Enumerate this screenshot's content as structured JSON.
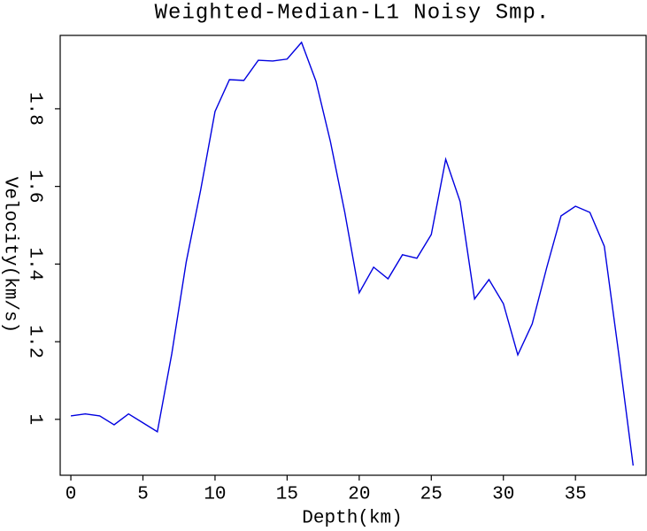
{
  "chart_data": {
    "type": "line",
    "title": "Weighted-Median-L1 Noisy Smp.",
    "x_label": "Depth(km)",
    "y_label": "Velocity(km/s)",
    "x": [
      0,
      1,
      2,
      3,
      4,
      5,
      6,
      7,
      8,
      9,
      10,
      11,
      12,
      13,
      14,
      15,
      16,
      17,
      18,
      19,
      20,
      21,
      22,
      23,
      24,
      25,
      26,
      27,
      28,
      29,
      30,
      31,
      32,
      33,
      34,
      35,
      36,
      37,
      38,
      39
    ],
    "series": [
      {
        "color": "#0000e0",
        "values": [
          1.009,
          1.014,
          1.009,
          0.986,
          1.014,
          0.991,
          0.968,
          1.169,
          1.405,
          1.59,
          1.793,
          1.875,
          1.873,
          1.925,
          1.923,
          1.928,
          1.971,
          1.871,
          1.716,
          1.533,
          1.326,
          1.392,
          1.362,
          1.424,
          1.415,
          1.476,
          1.67,
          1.561,
          1.31,
          1.36,
          1.298,
          1.166,
          1.246,
          1.39,
          1.524,
          1.549,
          1.533,
          1.446,
          1.169,
          0.881
        ]
      }
    ],
    "xlim": [
      -0.74,
      39.9
    ],
    "ylim": [
      0.856,
      1.989
    ],
    "xticks": [
      0,
      5,
      10,
      15,
      20,
      25,
      30,
      35
    ],
    "yticks": [
      1,
      1.2,
      1.4,
      1.6,
      1.8
    ]
  }
}
